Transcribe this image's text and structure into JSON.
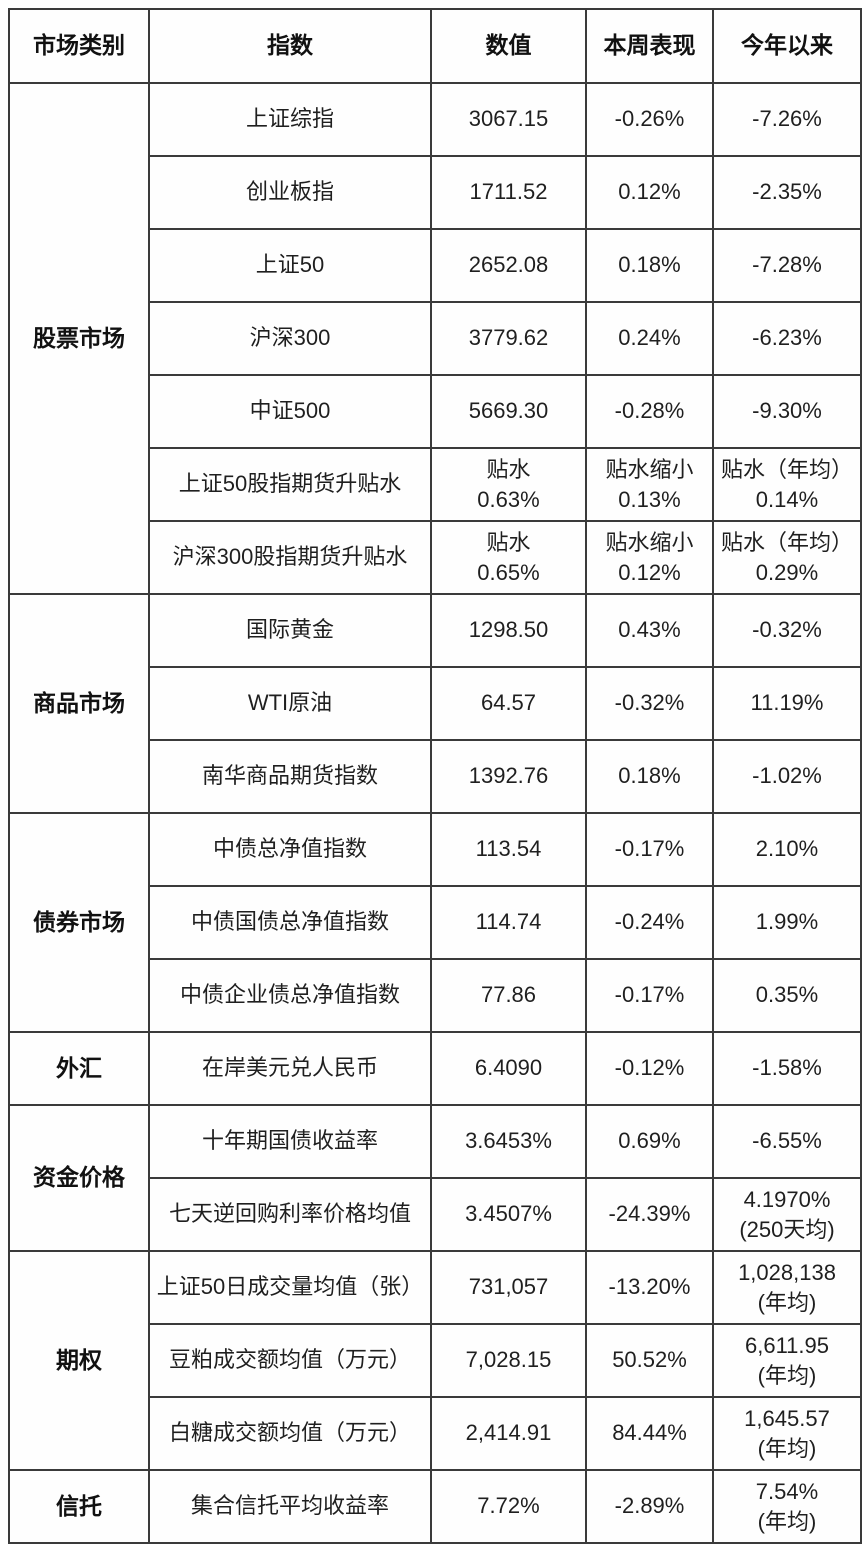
{
  "colors": {
    "background": "#ffffff",
    "border": "#3a3a3a",
    "text": "#1f1f1f",
    "header_text": "#111111"
  },
  "chart_data": {
    "type": "table",
    "columns": [
      "市场类别",
      "指数",
      "数值",
      "本周表现",
      "今年以来"
    ],
    "sections": [
      {
        "category": "股票市场",
        "rows": [
          {
            "index": "上证综指",
            "value": "3067.15",
            "week": "-0.26%",
            "ytd": "-7.26%"
          },
          {
            "index": "创业板指",
            "value": "1711.52",
            "week": "0.12%",
            "ytd": "-2.35%"
          },
          {
            "index": "上证50",
            "value": "2652.08",
            "week": "0.18%",
            "ytd": "-7.28%"
          },
          {
            "index": "沪深300",
            "value": "3779.62",
            "week": "0.24%",
            "ytd": "-6.23%"
          },
          {
            "index": "中证500",
            "value": "5669.30",
            "week": "-0.28%",
            "ytd": "-9.30%"
          },
          {
            "index": "上证50股指期货升贴水",
            "value": [
              "贴水",
              "0.63%"
            ],
            "week": [
              "贴水缩小",
              "0.13%"
            ],
            "ytd": [
              "贴水（年均）",
              "0.14%"
            ]
          },
          {
            "index": "沪深300股指期货升贴水",
            "value": [
              "贴水",
              "0.65%"
            ],
            "week": [
              "贴水缩小",
              "0.12%"
            ],
            "ytd": [
              "贴水（年均）",
              "0.29%"
            ]
          }
        ]
      },
      {
        "category": "商品市场",
        "rows": [
          {
            "index": "国际黄金",
            "value": "1298.50",
            "week": "0.43%",
            "ytd": "-0.32%"
          },
          {
            "index": "WTI原油",
            "value": "64.57",
            "week": "-0.32%",
            "ytd": "11.19%"
          },
          {
            "index": "南华商品期货指数",
            "value": "1392.76",
            "week": "0.18%",
            "ytd": "-1.02%"
          }
        ]
      },
      {
        "category": "债券市场",
        "rows": [
          {
            "index": "中债总净值指数",
            "value": "113.54",
            "week": "-0.17%",
            "ytd": "2.10%"
          },
          {
            "index": "中债国债总净值指数",
            "value": "114.74",
            "week": "-0.24%",
            "ytd": "1.99%"
          },
          {
            "index": "中债企业债总净值指数",
            "value": "77.86",
            "week": "-0.17%",
            "ytd": "0.35%"
          }
        ]
      },
      {
        "category": "外汇",
        "rows": [
          {
            "index": "在岸美元兑人民币",
            "value": "6.4090",
            "week": "-0.12%",
            "ytd": "-1.58%"
          }
        ]
      },
      {
        "category": "资金价格",
        "rows": [
          {
            "index": "十年期国债收益率",
            "value": "3.6453%",
            "week": "0.69%",
            "ytd": "-6.55%"
          },
          {
            "index": "七天逆回购利率价格均值",
            "value": "3.4507%",
            "week": "-24.39%",
            "ytd": [
              "4.1970%",
              "(250天均)"
            ]
          }
        ]
      },
      {
        "category": "期权",
        "rows": [
          {
            "index": "上证50日成交量均值（张）",
            "value": "731,057",
            "week": "-13.20%",
            "ytd": [
              "1,028,138",
              "(年均)"
            ]
          },
          {
            "index": "豆粕成交额均值（万元）",
            "value": "7,028.15",
            "week": "50.52%",
            "ytd": [
              "6,611.95",
              "(年均)"
            ]
          },
          {
            "index": "白糖成交额均值（万元）",
            "value": "2,414.91",
            "week": "84.44%",
            "ytd": [
              "1,645.57",
              "(年均)"
            ]
          }
        ]
      },
      {
        "category": "信托",
        "rows": [
          {
            "index": "集合信托平均收益率",
            "value": "7.72%",
            "week": "-2.89%",
            "ytd": [
              "7.54%",
              "(年均)"
            ]
          }
        ]
      }
    ]
  }
}
